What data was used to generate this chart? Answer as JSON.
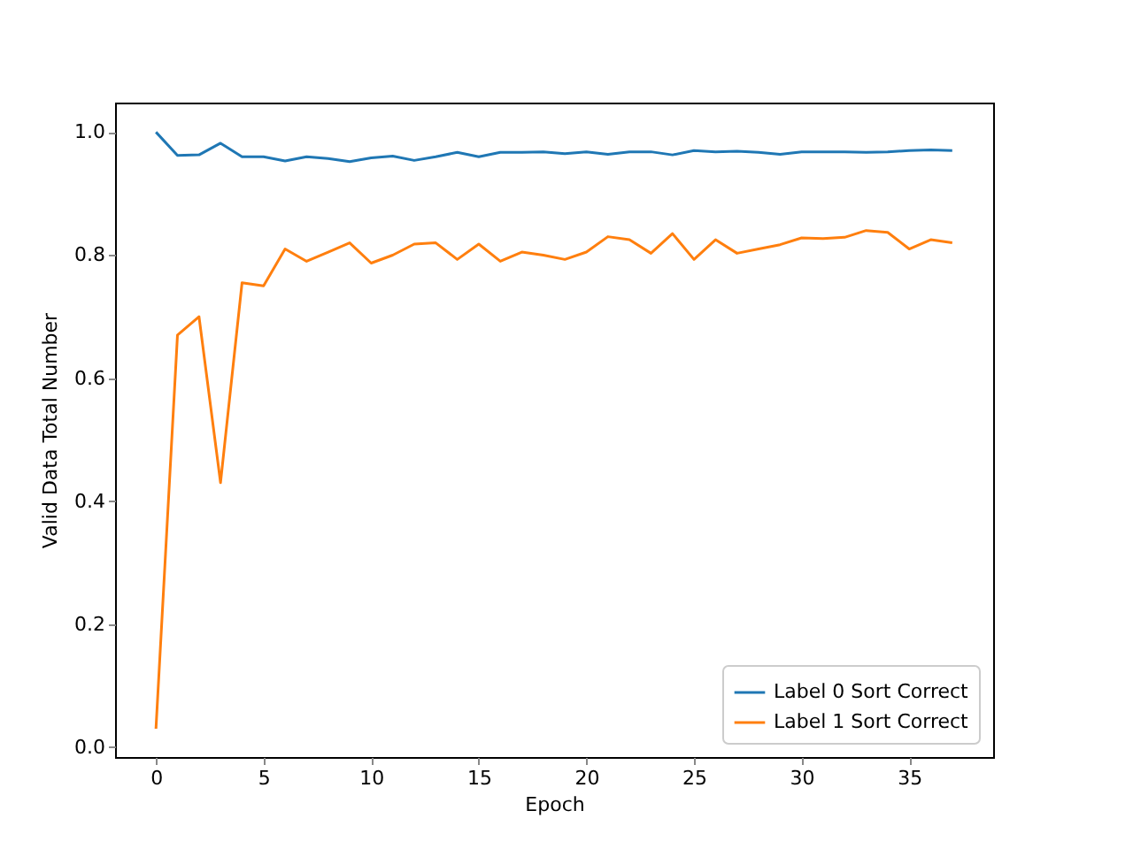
{
  "chart_data": {
    "type": "line",
    "xlabel": "Epoch",
    "ylabel": "Valid Data Total Number",
    "x": [
      0,
      1,
      2,
      3,
      4,
      5,
      6,
      7,
      8,
      9,
      10,
      11,
      12,
      13,
      14,
      15,
      16,
      17,
      18,
      19,
      20,
      21,
      22,
      23,
      24,
      25,
      26,
      27,
      28,
      29,
      30,
      31,
      32,
      33,
      34,
      35,
      36,
      37
    ],
    "series": [
      {
        "name": "Label 0 Sort Correct",
        "color": "#1f77b4",
        "values": [
          1.0,
          0.962,
          0.963,
          0.982,
          0.96,
          0.96,
          0.953,
          0.96,
          0.957,
          0.952,
          0.958,
          0.961,
          0.954,
          0.96,
          0.967,
          0.96,
          0.967,
          0.967,
          0.968,
          0.965,
          0.968,
          0.964,
          0.968,
          0.968,
          0.963,
          0.97,
          0.968,
          0.969,
          0.967,
          0.964,
          0.968,
          0.968,
          0.968,
          0.967,
          0.968,
          0.97,
          0.971,
          0.97
        ]
      },
      {
        "name": "Label 1 Sort Correct",
        "color": "#ff7f0e",
        "values": [
          0.03,
          0.67,
          0.7,
          0.43,
          0.755,
          0.75,
          0.81,
          0.79,
          0.805,
          0.82,
          0.787,
          0.8,
          0.818,
          0.82,
          0.793,
          0.818,
          0.79,
          0.805,
          0.8,
          0.793,
          0.805,
          0.83,
          0.825,
          0.803,
          0.835,
          0.793,
          0.825,
          0.803,
          0.81,
          0.817,
          0.828,
          0.827,
          0.829,
          0.84,
          0.837,
          0.81,
          0.825,
          0.82
        ]
      }
    ],
    "xlim": [
      -1.9,
      38.9
    ],
    "xticks": [
      0,
      5,
      10,
      15,
      20,
      25,
      30,
      35
    ],
    "ylim": [
      -0.016,
      1.048
    ],
    "yticks": [
      {
        "value": 0,
        "label": "0.0"
      },
      {
        "value": 0.2,
        "label": "0.2"
      },
      {
        "value": 0.4,
        "label": "0.4"
      },
      {
        "value": 0.6,
        "label": "0.6"
      },
      {
        "value": 0.8,
        "label": "0.8"
      },
      {
        "value": 1,
        "label": "1.0"
      }
    ],
    "legend": "bottom right",
    "grid": false
  }
}
